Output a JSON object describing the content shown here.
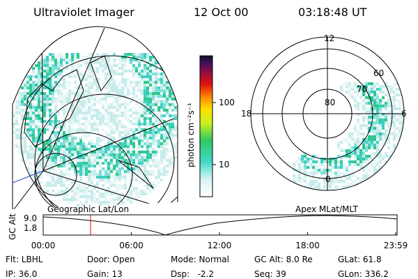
{
  "header": {
    "title": "Ultraviolet Imager",
    "date": "12 Oct 00",
    "time": "03:18:48 UT"
  },
  "colorbar": {
    "axis_label": "photon cm⁻²s⁻¹",
    "tick_labels": [
      "100",
      "10"
    ]
  },
  "polar_plot": {
    "mlt_labels": [
      "12",
      "18",
      "6",
      "0"
    ],
    "lat_labels": [
      "80",
      "70",
      "60"
    ]
  },
  "map_labels": {
    "left": "Geographic Lat/Lon",
    "right": "Apex MLat/MLT"
  },
  "orbit_plot": {
    "y_label": "GC Alt",
    "y_tick_labels": [
      "9.0",
      "1.8"
    ],
    "x_tick_labels": [
      "00:00",
      "06:00",
      "12:00",
      "18:00",
      "23:59"
    ]
  },
  "info": {
    "rows": [
      [
        "Flt: LBHL",
        "Door: Open",
        "Mode: Normal",
        "GC Alt: 8.0 Re",
        "GLat: 61.8"
      ],
      [
        "IP: 36.0",
        "Gain: 13",
        "Dsp:   -2.2",
        "Seq: 39",
        "GLon: 336.2"
      ]
    ]
  }
}
